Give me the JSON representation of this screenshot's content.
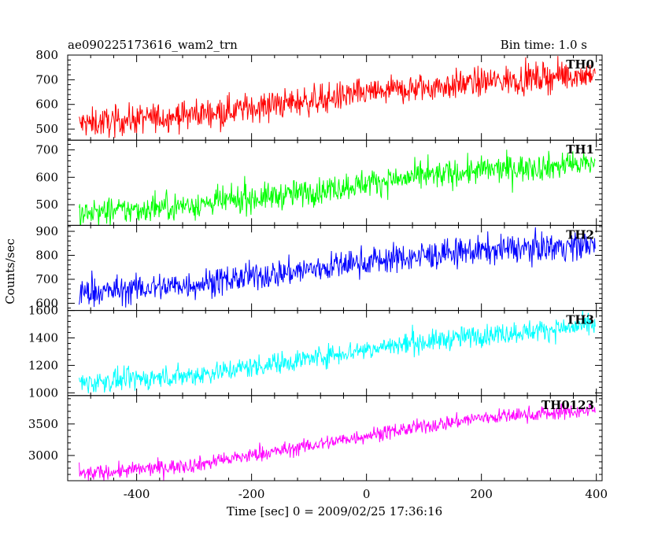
{
  "header": {
    "title": "ae090225173616_wam2_trn",
    "bin_time": "Bin time: 1.0 s"
  },
  "chart_data": {
    "type": "line",
    "xlabel": "Time [sec] 0 = 2009/02/25 17:36:16",
    "ylabel": "Counts/sec",
    "xlim": [
      -520,
      410
    ],
    "xticks": [
      -400,
      -200,
      0,
      200,
      400
    ],
    "x_range_data": [
      -500,
      398
    ],
    "bin_time_s": 1.0,
    "panels": [
      {
        "name": "TH0",
        "color": "#ff0000",
        "ylim": [
          455,
          800
        ],
        "yticks": [
          500,
          600,
          700,
          800
        ],
        "trend": [
          [
            -500,
            520
          ],
          [
            -300,
            560
          ],
          [
            -100,
            615
          ],
          [
            0,
            645
          ],
          [
            200,
            690
          ],
          [
            398,
            725
          ]
        ],
        "noise": 30
      },
      {
        "name": "TH1",
        "color": "#00ff00",
        "ylim": [
          425,
          735
        ],
        "yticks": [
          500,
          600,
          700
        ],
        "trend": [
          [
            -500,
            465
          ],
          [
            -300,
            500
          ],
          [
            -100,
            545
          ],
          [
            0,
            580
          ],
          [
            200,
            625
          ],
          [
            398,
            650
          ]
        ],
        "noise": 25
      },
      {
        "name": "TH2",
        "color": "#0000ff",
        "ylim": [
          570,
          925
        ],
        "yticks": [
          600,
          700,
          800,
          900
        ],
        "trend": [
          [
            -500,
            640
          ],
          [
            -300,
            680
          ],
          [
            -100,
            740
          ],
          [
            0,
            775
          ],
          [
            200,
            820
          ],
          [
            398,
            845
          ]
        ],
        "noise": 30
      },
      {
        "name": "TH3",
        "color": "#00ffff",
        "ylim": [
          980,
          1600
        ],
        "yticks": [
          1000,
          1200,
          1400,
          1600
        ],
        "trend": [
          [
            -500,
            1070
          ],
          [
            -300,
            1130
          ],
          [
            -100,
            1250
          ],
          [
            0,
            1320
          ],
          [
            200,
            1420
          ],
          [
            398,
            1490
          ]
        ],
        "noise": 40
      },
      {
        "name": "TH0123",
        "color": "#ff00ff",
        "ylim": [
          2600,
          3950
        ],
        "yticks": [
          3000,
          3500
        ],
        "trend": [
          [
            -500,
            2700
          ],
          [
            -300,
            2850
          ],
          [
            -100,
            3150
          ],
          [
            0,
            3320
          ],
          [
            200,
            3600
          ],
          [
            398,
            3720
          ]
        ],
        "noise": 60
      }
    ]
  }
}
